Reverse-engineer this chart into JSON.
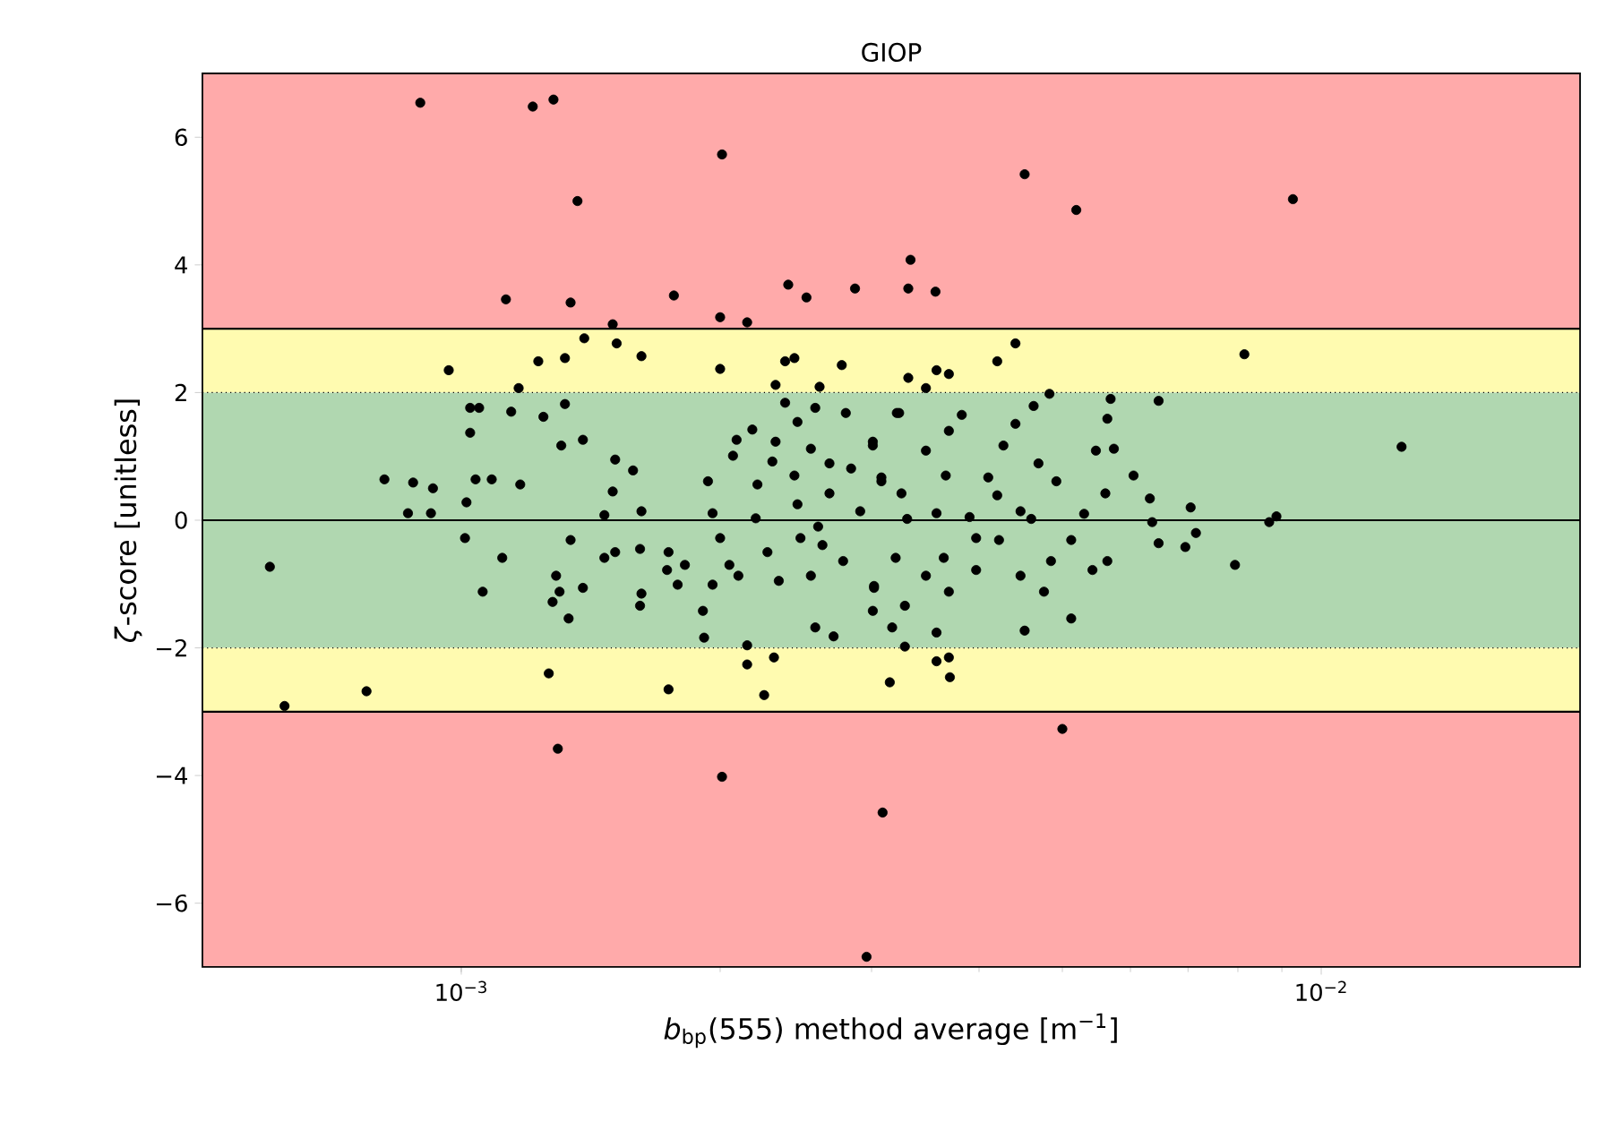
{
  "chart_data": {
    "type": "scatter",
    "title": "GIOP",
    "xlabel": "*b*$_{bp}$(555) method average [m$^{−1}$]",
    "ylabel": "*ζ*-score [unitless]",
    "log": "x",
    "color": "#000000",
    "xlim": [
      0.0005,
      0.02
    ],
    "ylim": [
      -7,
      7
    ],
    "xticks": [
      {
        "value": 0.001,
        "label": "10$^{−3}$"
      },
      {
        "value": 0.01,
        "label": "10$^{−2}$"
      }
    ],
    "yticks": [
      {
        "value": -6,
        "label": "−6"
      },
      {
        "value": -4,
        "label": "−4"
      },
      {
        "value": -2,
        "label": "−2"
      },
      0,
      2,
      4,
      6
    ],
    "bands": [
      {
        "axis": "y",
        "from": 3,
        "to": 7,
        "color": "#ffaaaa"
      },
      {
        "axis": "y",
        "from": 2,
        "to": 3,
        "color": "#fffbb0"
      },
      {
        "axis": "y",
        "from": -2,
        "to": 2,
        "color": "#b0d7b0"
      },
      {
        "axis": "y",
        "from": -3,
        "to": -2,
        "color": "#fffbb0"
      },
      {
        "axis": "y",
        "from": -7,
        "to": -3,
        "color": "#ffaaaa"
      }
    ],
    "ref_lines": [
      {
        "axis": "y",
        "value": 3,
        "color": "#000000",
        "line_style": "solid"
      },
      {
        "axis": "y",
        "value": 2,
        "color": "#000000",
        "line_style": "dotted"
      },
      {
        "axis": "y",
        "value": 0,
        "color": "#000000",
        "line_style": "solid"
      },
      {
        "axis": "y",
        "value": -2,
        "color": "#000000",
        "line_style": "dotted"
      },
      {
        "axis": "y",
        "value": -3,
        "color": "#000000",
        "line_style": "solid"
      }
    ],
    "x": [
      0.000896,
      0.001211,
      0.00128,
      0.00201,
      0.001365,
      0.001127,
      0.00134,
      0.001767,
      0.002,
      0.00215,
      0.0024,
      0.00252,
      0.00287,
      0.00331,
      0.00333,
      0.000967,
      0.001229,
      0.00132,
      0.00139,
      0.0015,
      0.001516,
      0.00162,
      0.002,
      0.00238,
      0.00244,
      0.00277,
      0.00331,
      0.001166,
      0.001024,
      0.001049,
      0.001024,
      0.001143,
      0.001246,
      0.00132,
      0.001307,
      0.001385,
      0.000814,
      0.000879,
      0.000927,
      0.001039,
      0.001085,
      0.001171,
      0.000867,
      0.000922,
      0.001014,
      0.00151,
      0.001584,
      0.0015,
      0.00162,
      0.001467,
      0.001936,
      0.00209,
      0.00218,
      0.00207,
      0.00232,
      0.0023,
      0.00221,
      0.00232,
      0.00238,
      0.00246,
      0.00261,
      0.00258,
      0.0028,
      0.00255,
      0.00268,
      0.00244,
      0.00284,
      0.00301,
      0.00323,
      0.00268,
      0.00308,
      0.00246,
      0.00291,
      0.00196,
      0.00452,
      0.00519,
      0.00927,
      0.00356,
      0.00441,
      0.0042,
      0.00814,
      0.00357,
      0.00369,
      0.00347,
      0.00483,
      0.00463,
      0.00569,
      0.00647,
      0.00321,
      0.00382,
      0.00369,
      0.00441,
      0.00564,
      0.00301,
      0.00347,
      0.00427,
      0.00469,
      0.00547,
      0.00574,
      0.0124,
      0.00308,
      0.00366,
      0.0041,
      0.00492,
      0.00605,
      0.00325,
      0.0042,
      0.00561,
      0.00632,
      0.00705,
      0.00357,
      0.00447,
      0.00887,
      0.0087,
      0.00794,
      0.00695,
      0.00715,
      0.00647,
      0.00636,
      0.00512,
      0.00564,
      0.00542,
      0.00512,
      0.00485,
      0.00476,
      0.00447,
      0.00452,
      0.00422,
      0.00397,
      0.00397,
      0.00369,
      0.00347,
      0.00364,
      0.0032,
      0.00302,
      0.00301,
      0.00328,
      0.00317,
      0.00357,
      0.00328,
      0.00357,
      0.00369,
      0.0037,
      0.00315,
      0.005,
      0.00309,
      0.00296,
      0.000599,
      0.000623,
      0.000776,
      0.00101,
      0.001116,
      0.001059,
      0.001289,
      0.001301,
      0.001277,
      0.001333,
      0.001385,
      0.00134,
      0.001467,
      0.00151,
      0.001614,
      0.00162,
      0.001614,
      0.001742,
      0.001735,
      0.00182,
      0.001785,
      0.00191,
      0.001916,
      0.00196,
      0.002,
      0.00205,
      0.0021,
      0.00227,
      0.00215,
      0.00215,
      0.00231,
      0.00225,
      0.00234,
      0.00248,
      0.00255,
      0.00258,
      0.00271,
      0.00263,
      0.00278,
      0.00302,
      0.001264,
      0.001742,
      0.001295,
      0.00201,
      0.0022,
      0.0026,
      0.0033,
      0.0039,
      0.0046,
      0.0053
    ],
    "values": [
      6.54,
      6.48,
      6.59,
      5.73,
      5.0,
      3.46,
      3.41,
      3.52,
      3.18,
      3.1,
      3.69,
      3.49,
      3.63,
      3.63,
      4.08,
      2.35,
      2.49,
      2.54,
      2.85,
      3.07,
      2.77,
      2.57,
      2.37,
      2.49,
      2.54,
      2.43,
      2.23,
      2.07,
      1.76,
      1.76,
      1.37,
      1.7,
      1.62,
      1.82,
      1.17,
      1.26,
      0.64,
      0.59,
      0.5,
      0.64,
      0.64,
      0.56,
      0.11,
      0.11,
      0.28,
      0.95,
      0.78,
      0.45,
      0.14,
      0.08,
      0.61,
      1.26,
      1.42,
      1.01,
      1.23,
      0.92,
      0.56,
      2.12,
      1.84,
      1.54,
      2.09,
      1.76,
      1.68,
      1.12,
      0.89,
      0.7,
      0.81,
      1.17,
      1.68,
      0.42,
      0.61,
      0.25,
      0.14,
      0.11,
      5.42,
      4.86,
      5.03,
      3.58,
      2.77,
      2.49,
      2.6,
      2.35,
      2.29,
      2.07,
      1.98,
      1.79,
      1.9,
      1.87,
      1.68,
      1.65,
      1.4,
      1.51,
      1.59,
      1.23,
      1.09,
      1.17,
      0.89,
      1.09,
      1.12,
      1.15,
      0.67,
      0.7,
      0.67,
      0.61,
      0.7,
      0.42,
      0.39,
      0.42,
      0.34,
      0.2,
      0.11,
      0.14,
      0.06,
      -0.03,
      -0.7,
      -0.42,
      -0.2,
      -0.36,
      -0.03,
      -0.31,
      -0.64,
      -0.78,
      -1.54,
      -0.64,
      -1.12,
      -0.87,
      -1.73,
      -0.31,
      -0.28,
      -0.78,
      -1.12,
      -0.87,
      -0.59,
      -0.59,
      -1.03,
      -1.42,
      -1.34,
      -1.68,
      -1.76,
      -1.98,
      -2.21,
      -2.15,
      -2.46,
      -2.54,
      -3.27,
      -4.58,
      -6.84,
      -0.73,
      -2.91,
      -2.68,
      -0.28,
      -0.59,
      -1.12,
      -0.87,
      -1.12,
      -1.28,
      -1.54,
      -1.06,
      -0.31,
      -0.59,
      -0.5,
      -0.45,
      -1.15,
      -1.34,
      -0.5,
      -0.78,
      -0.7,
      -1.01,
      -1.42,
      -1.84,
      -1.01,
      -0.28,
      -0.7,
      -0.87,
      -0.5,
      -1.96,
      -2.26,
      -2.15,
      -2.74,
      -0.95,
      -0.28,
      -0.87,
      -1.68,
      -1.82,
      -0.39,
      -0.64,
      -1.06,
      -2.4,
      -2.65,
      -3.58,
      -4.02,
      0.03,
      -0.1,
      0.02,
      0.05,
      0.02,
      0.1
    ]
  }
}
